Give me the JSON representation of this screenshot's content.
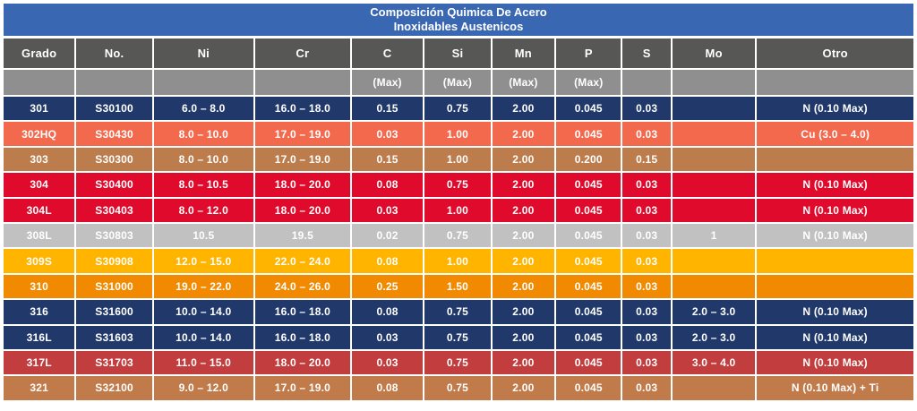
{
  "title": {
    "line1": "Composición Quimica De Acero",
    "line2": "Inoxidables Austenicos"
  },
  "colors": {
    "title_bar": "#3A67B1",
    "header_primary": "#575756",
    "header_secondary": "#908F8F",
    "separator": "#FFFFFF",
    "navy_row": "#20386A",
    "coral_row": "#F2694D",
    "brown_row": "#BC7C4C",
    "red_row": "#E00B2C",
    "silver_row": "#C2C1C1",
    "amber_row": "#FFB400",
    "orange_row": "#F18A00",
    "brick_row": "#C23D3D",
    "copper_row": "#C17B4A"
  },
  "table": {
    "columns": [
      {
        "key": "grado",
        "label": "Grado",
        "sub": ""
      },
      {
        "key": "no",
        "label": "No.",
        "sub": ""
      },
      {
        "key": "ni",
        "label": "Ni",
        "sub": ""
      },
      {
        "key": "cr",
        "label": "Cr",
        "sub": ""
      },
      {
        "key": "c",
        "label": "C",
        "sub": "(Max)"
      },
      {
        "key": "si",
        "label": "Si",
        "sub": "(Max)"
      },
      {
        "key": "mn",
        "label": "Mn",
        "sub": "(Max)"
      },
      {
        "key": "p",
        "label": "P",
        "sub": "(Max)"
      },
      {
        "key": "s",
        "label": "S",
        "sub": ""
      },
      {
        "key": "mo",
        "label": "Mo",
        "sub": ""
      },
      {
        "key": "otro",
        "label": "Otro",
        "sub": ""
      }
    ],
    "rows": [
      {
        "grado": "301",
        "no": "S30100",
        "ni": "6.0 – 8.0",
        "cr": "16.0 – 18.0",
        "c": "0.15",
        "si": "0.75",
        "mn": "2.00",
        "p": "0.045",
        "s": "0.03",
        "mo": "",
        "otro": "N (0.10 Max)",
        "color": "#20386A"
      },
      {
        "grado": "302HQ",
        "no": "S30430",
        "ni": "8.0 – 10.0",
        "cr": "17.0 – 19.0",
        "c": "0.03",
        "si": "1.00",
        "mn": "2.00",
        "p": "0.045",
        "s": "0.03",
        "mo": "",
        "otro": "Cu (3.0 – 4.0)",
        "color": "#F2694D"
      },
      {
        "grado": "303",
        "no": "S30300",
        "ni": "8.0 – 10.0",
        "cr": "17.0 – 19.0",
        "c": "0.15",
        "si": "1.00",
        "mn": "2.00",
        "p": "0.200",
        "s": "0.15",
        "mo": "",
        "otro": "",
        "color": "#BC7C4C"
      },
      {
        "grado": "304",
        "no": "S30400",
        "ni": "8.0 – 10.5",
        "cr": "18.0 – 20.0",
        "c": "0.08",
        "si": "0.75",
        "mn": "2.00",
        "p": "0.045",
        "s": "0.03",
        "mo": "",
        "otro": "N (0.10 Max)",
        "color": "#E00B2C"
      },
      {
        "grado": "304L",
        "no": "S30403",
        "ni": "8.0 – 12.0",
        "cr": "18.0 – 20.0",
        "c": "0.03",
        "si": "1.00",
        "mn": "2.00",
        "p": "0.045",
        "s": "0.03",
        "mo": "",
        "otro": "N (0.10 Max)",
        "color": "#E00B2C"
      },
      {
        "grado": "308L",
        "no": "S30803",
        "ni": "10.5",
        "cr": "19.5",
        "c": "0.02",
        "si": "0.75",
        "mn": "2.00",
        "p": "0.045",
        "s": "0.03",
        "mo": "1",
        "otro": "N (0.10 Max)",
        "color": "#C2C1C1"
      },
      {
        "grado": "309S",
        "no": "S30908",
        "ni": "12.0 – 15.0",
        "cr": "22.0 – 24.0",
        "c": "0.08",
        "si": "1.00",
        "mn": "2.00",
        "p": "0.045",
        "s": "0.03",
        "mo": "",
        "otro": "",
        "color": "#FFB400"
      },
      {
        "grado": "310",
        "no": "S31000",
        "ni": "19.0 – 22.0",
        "cr": "24.0 – 26.0",
        "c": "0.25",
        "si": "1.50",
        "mn": "2.00",
        "p": "0.045",
        "s": "0.03",
        "mo": "",
        "otro": "",
        "color": "#F18A00"
      },
      {
        "grado": "316",
        "no": "S31600",
        "ni": "10.0 – 14.0",
        "cr": "16.0 – 18.0",
        "c": "0.08",
        "si": "0.75",
        "mn": "2.00",
        "p": "0.045",
        "s": "0.03",
        "mo": "2.0 – 3.0",
        "otro": "N (0.10 Max)",
        "color": "#20386A"
      },
      {
        "grado": "316L",
        "no": "S31603",
        "ni": "10.0 – 14.0",
        "cr": "16.0 – 18.0",
        "c": "0.03",
        "si": "0.75",
        "mn": "2.00",
        "p": "0.045",
        "s": "0.03",
        "mo": "2.0 – 3.0",
        "otro": "N (0.10 Max)",
        "color": "#20386A"
      },
      {
        "grado": "317L",
        "no": "S31703",
        "ni": "11.0 – 15.0",
        "cr": "18.0 – 20.0",
        "c": "0.03",
        "si": "0.75",
        "mn": "2.00",
        "p": "0.045",
        "s": "0.03",
        "mo": "3.0 – 4.0",
        "otro": "N (0.10 Max)",
        "color": "#C23D3D"
      },
      {
        "grado": "321",
        "no": "S32100",
        "ni": "9.0 – 12.0",
        "cr": "17.0 – 19.0",
        "c": "0.08",
        "si": "0.75",
        "mn": "2.00",
        "p": "0.045",
        "s": "0.03",
        "mo": "",
        "otro": "N (0.10 Max) + Ti",
        "color": "#C17B4A"
      }
    ]
  },
  "chart_data": {
    "type": "table",
    "title": "Composición Quimica De Acero Inoxidables Austenicos",
    "columns": [
      "Grado",
      "No.",
      "Ni",
      "Cr",
      "C (Max)",
      "Si (Max)",
      "Mn (Max)",
      "P (Max)",
      "S",
      "Mo",
      "Otro"
    ],
    "rows": [
      [
        "301",
        "S30100",
        "6.0 – 8.0",
        "16.0 – 18.0",
        "0.15",
        "0.75",
        "2.00",
        "0.045",
        "0.03",
        "",
        "N (0.10 Max)"
      ],
      [
        "302HQ",
        "S30430",
        "8.0 – 10.0",
        "17.0 – 19.0",
        "0.03",
        "1.00",
        "2.00",
        "0.045",
        "0.03",
        "",
        "Cu (3.0 – 4.0)"
      ],
      [
        "303",
        "S30300",
        "8.0 – 10.0",
        "17.0 – 19.0",
        "0.15",
        "1.00",
        "2.00",
        "0.200",
        "0.15",
        "",
        ""
      ],
      [
        "304",
        "S30400",
        "8.0 – 10.5",
        "18.0 – 20.0",
        "0.08",
        "0.75",
        "2.00",
        "0.045",
        "0.03",
        "",
        "N (0.10 Max)"
      ],
      [
        "304L",
        "S30403",
        "8.0 – 12.0",
        "18.0 – 20.0",
        "0.03",
        "1.00",
        "2.00",
        "0.045",
        "0.03",
        "",
        "N (0.10 Max)"
      ],
      [
        "308L",
        "S30803",
        "10.5",
        "19.5",
        "0.02",
        "0.75",
        "2.00",
        "0.045",
        "0.03",
        "1",
        "N (0.10 Max)"
      ],
      [
        "309S",
        "S30908",
        "12.0 – 15.0",
        "22.0 – 24.0",
        "0.08",
        "1.00",
        "2.00",
        "0.045",
        "0.03",
        "",
        ""
      ],
      [
        "310",
        "S31000",
        "19.0 – 22.0",
        "24.0 – 26.0",
        "0.25",
        "1.50",
        "2.00",
        "0.045",
        "0.03",
        "",
        ""
      ],
      [
        "316",
        "S31600",
        "10.0 – 14.0",
        "16.0 – 18.0",
        "0.08",
        "0.75",
        "2.00",
        "0.045",
        "0.03",
        "2.0 – 3.0",
        "N (0.10 Max)"
      ],
      [
        "316L",
        "S31603",
        "10.0 – 14.0",
        "16.0 – 18.0",
        "0.03",
        "0.75",
        "2.00",
        "0.045",
        "0.03",
        "2.0 – 3.0",
        "N (0.10 Max)"
      ],
      [
        "317L",
        "S31703",
        "11.0 – 15.0",
        "18.0 – 20.0",
        "0.03",
        "0.75",
        "2.00",
        "0.045",
        "0.03",
        "3.0 – 4.0",
        "N (0.10 Max)"
      ],
      [
        "321",
        "S32100",
        "9.0 – 12.0",
        "17.0 – 19.0",
        "0.08",
        "0.75",
        "2.00",
        "0.045",
        "0.03",
        "",
        "N (0.10 Max) + Ti"
      ]
    ]
  }
}
